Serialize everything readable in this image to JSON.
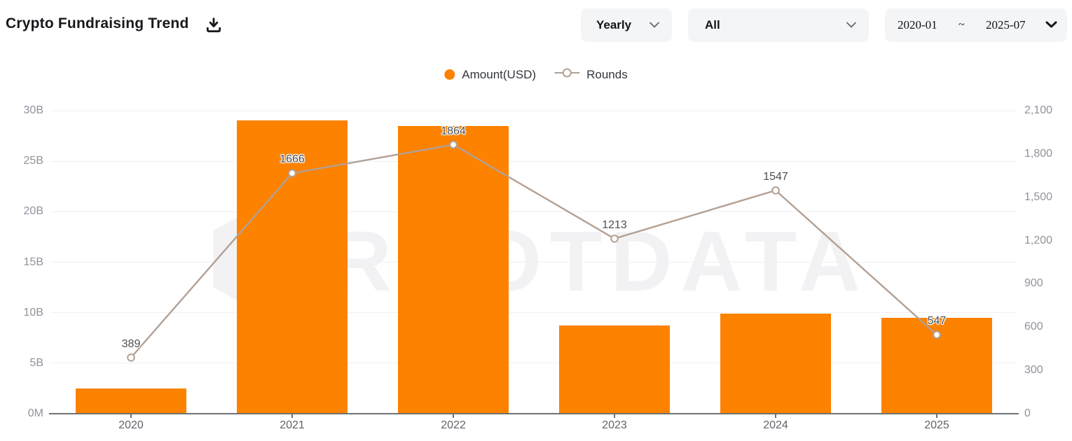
{
  "header": {
    "title": "Crypto Fundraising Trend"
  },
  "controls": {
    "period_select": {
      "value": "Yearly"
    },
    "category_select": {
      "value": "All"
    },
    "date_range": {
      "start": "2020-01",
      "separator": "~",
      "end": "2025-07"
    }
  },
  "legend": {
    "items": [
      {
        "label": "Amount(USD)",
        "marker": "circle",
        "color": "#fc8200"
      },
      {
        "label": "Rounds",
        "marker": "line-circle",
        "color": "#b3a094"
      }
    ]
  },
  "watermark": "ROOTDATA",
  "chart_data": {
    "type": "combo",
    "categories": [
      "2020",
      "2021",
      "2022",
      "2023",
      "2024",
      "2025"
    ],
    "series": [
      {
        "name": "Amount(USD)",
        "type": "bar",
        "y_axis": "left",
        "color": "#fc8200",
        "unit": "USD billions",
        "values": [
          2.5,
          29,
          28.5,
          8.7,
          9.9,
          9.5
        ]
      },
      {
        "name": "Rounds",
        "type": "line",
        "y_axis": "right",
        "color": "#b3a094",
        "marker_fill": "#ffffff",
        "values": [
          389,
          1666,
          1864,
          1213,
          1547,
          547
        ],
        "point_labels": [
          "389",
          "1666",
          "1864",
          "1213",
          "1547",
          "547"
        ]
      }
    ],
    "left_axis": {
      "ticks": [
        "0M",
        "5B",
        "10B",
        "15B",
        "20B",
        "25B",
        "30B"
      ],
      "min": 0,
      "max": 30,
      "unit": "B"
    },
    "right_axis": {
      "ticks": [
        "0",
        "300",
        "600",
        "900",
        "1,200",
        "1,500",
        "1,800",
        "2,100"
      ],
      "min": 0,
      "max": 2100
    },
    "grid": true,
    "legend_position": "top"
  }
}
